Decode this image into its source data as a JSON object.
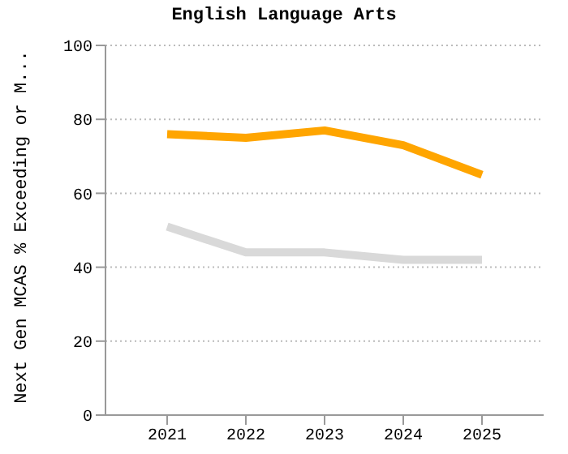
{
  "chart_data": {
    "type": "line",
    "title": "English Language Arts",
    "ylabel": "Next Gen MCAS % Exceeding or M...",
    "categories": [
      "2021",
      "2022",
      "2023",
      "2024",
      "2025"
    ],
    "series": [
      {
        "color": "#ffa500",
        "values": [
          76,
          75,
          77,
          73,
          65
        ]
      },
      {
        "color": "#d9d9d9",
        "values": [
          51,
          44,
          44,
          42,
          42
        ]
      }
    ],
    "ylim": [
      0,
      100
    ],
    "yticks": [
      0,
      20,
      40,
      60,
      80,
      100
    ],
    "grid": "y",
    "legend": false,
    "marker": "none",
    "line_style": "solid"
  }
}
